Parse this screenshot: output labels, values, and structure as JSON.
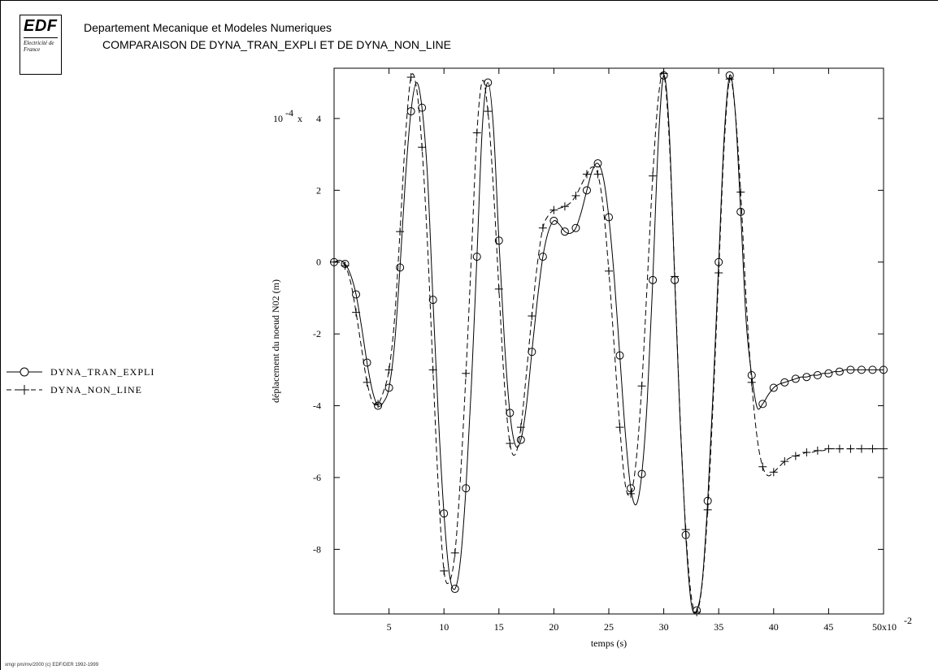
{
  "header": {
    "logo_mark": "EDF",
    "logo_sub": "Electricité de France",
    "title_line1": "Departement Mecanique et Modeles Numeriques",
    "title_line2": "COMPARAISON DE DYNA_TRAN_EXPLI ET DE DYNA_NON_LINE"
  },
  "footer": {
    "text": "xmgr pm/mv/2000 (c) EDF/DER 1992-1999"
  },
  "chart_data": {
    "type": "line",
    "title": "COMPARAISON DE DYNA_TRAN_EXPLI ET DE DYNA_NON_LINE",
    "xlabel": "temps (s)",
    "ylabel": "déplacement du noeud N02 (m)",
    "x_multiplier_label": "x10",
    "x_multiplier_exp": "-2",
    "y_multiplier_label": "10",
    "y_multiplier_exp": "-4",
    "y_multiplier_suffix": "x",
    "xlim": [
      0,
      50
    ],
    "ylim": [
      -9.8,
      5.4
    ],
    "x_ticks": [
      5,
      10,
      15,
      20,
      25,
      30,
      35,
      40,
      45,
      50
    ],
    "x_tick_labels": [
      "5",
      "10",
      "15",
      "20",
      "25",
      "30",
      "35",
      "40",
      "45",
      "50"
    ],
    "y_ticks": [
      4,
      2,
      0,
      -2,
      -4,
      -6,
      -8
    ],
    "y_tick_labels": [
      "4",
      "2",
      "0",
      "-2",
      "-4",
      "-6",
      "-8"
    ],
    "grid": false,
    "legend_position": "left",
    "series": [
      {
        "name": "DYNA_TRAN_EXPLI",
        "marker": "circle",
        "line": "solid",
        "color": "#000000",
        "x": [
          0,
          0.5,
          1.0,
          1.5,
          2.0,
          2.5,
          3.0,
          3.5,
          4.0,
          4.5,
          5.0,
          5.5,
          6.0,
          6.5,
          7.0,
          7.5,
          8.0,
          8.5,
          9.0,
          9.5,
          10.0,
          10.5,
          11.0,
          11.5,
          12.0,
          12.5,
          13.0,
          13.5,
          14.0,
          14.5,
          15.0,
          15.5,
          16.0,
          16.5,
          17.0,
          17.5,
          18.0,
          18.5,
          19.0,
          19.5,
          20.0,
          20.5,
          21.0,
          21.5,
          22.0,
          22.5,
          23.0,
          23.5,
          24.0,
          24.5,
          25.0,
          25.5,
          26.0,
          26.5,
          27.0,
          27.5,
          28.0,
          28.5,
          29.0,
          29.5,
          30.0,
          30.5,
          31.0,
          31.5,
          32.0,
          32.5,
          33.0,
          33.5,
          34.0,
          34.5,
          35.0,
          35.5,
          36.0,
          36.5,
          37.0,
          37.5,
          38.0,
          38.5,
          39.0,
          39.5,
          40.0,
          40.5,
          41.0,
          41.5,
          42.0,
          42.5,
          43.0,
          43.5,
          44.0,
          44.5,
          45.0,
          45.5,
          46.0,
          46.5,
          47.0,
          47.5,
          48.0,
          48.5,
          49.0,
          49.5,
          50.0
        ],
        "y": [
          0.0,
          0.05,
          -0.05,
          -0.35,
          -0.9,
          -1.8,
          -2.8,
          -3.6,
          -4.0,
          -3.9,
          -3.5,
          -2.3,
          -0.15,
          2.35,
          4.2,
          5.0,
          4.3,
          2.4,
          -1.05,
          -4.35,
          -7.0,
          -8.7,
          -9.1,
          -8.3,
          -6.3,
          -3.4,
          0.15,
          3.8,
          5.0,
          3.75,
          0.6,
          -2.2,
          -4.2,
          -5.1,
          -4.95,
          -4.0,
          -2.5,
          -1.05,
          0.15,
          0.85,
          1.15,
          1.05,
          0.85,
          0.8,
          0.95,
          1.4,
          2.0,
          2.55,
          2.75,
          2.35,
          1.25,
          -0.45,
          -2.6,
          -4.75,
          -6.3,
          -6.75,
          -5.9,
          -3.85,
          -0.5,
          3.3,
          5.2,
          3.65,
          -0.5,
          -4.5,
          -7.6,
          -9.5,
          -9.7,
          -8.9,
          -6.65,
          -3.55,
          0.0,
          3.5,
          5.2,
          4.2,
          1.4,
          -1.65,
          -3.15,
          -4.05,
          -3.95,
          -3.7,
          -3.5,
          -3.4,
          -3.35,
          -3.3,
          -3.25,
          -3.2,
          -3.2,
          -3.15,
          -3.15,
          -3.1,
          -3.1,
          -3.05,
          -3.05,
          -3.0,
          -3.0,
          -3.0,
          -3.0,
          -3.0,
          -3.0,
          -3.0,
          -3.0
        ]
      },
      {
        "name": "DYNA_NON_LINE",
        "marker": "plus",
        "line": "dashed",
        "color": "#000000",
        "x": [
          0,
          0.5,
          1.0,
          1.5,
          2.0,
          2.5,
          3.0,
          3.5,
          4.0,
          4.5,
          5.0,
          5.5,
          6.0,
          6.5,
          7.0,
          7.5,
          8.0,
          8.5,
          9.0,
          9.5,
          10.0,
          10.5,
          11.0,
          11.5,
          12.0,
          12.5,
          13.0,
          13.5,
          14.0,
          14.5,
          15.0,
          15.5,
          16.0,
          16.5,
          17.0,
          17.5,
          18.0,
          18.5,
          19.0,
          19.5,
          20.0,
          20.5,
          21.0,
          21.5,
          22.0,
          22.5,
          23.0,
          23.5,
          24.0,
          24.5,
          25.0,
          25.5,
          26.0,
          26.5,
          27.0,
          27.5,
          28.0,
          28.5,
          29.0,
          29.5,
          30.0,
          30.5,
          31.0,
          31.5,
          32.0,
          32.5,
          33.0,
          33.5,
          34.0,
          34.5,
          35.0,
          35.5,
          36.0,
          36.5,
          37.0,
          37.5,
          38.0,
          38.5,
          39.0,
          39.5,
          40.0,
          40.5,
          41.0,
          41.5,
          42.0,
          42.5,
          43.0,
          43.5,
          44.0,
          44.5,
          45.0,
          45.5,
          46.0,
          46.5,
          47.0,
          47.5,
          48.0,
          48.5,
          49.0,
          49.5,
          50.0
        ],
        "y": [
          0.0,
          0.0,
          -0.1,
          -0.55,
          -1.4,
          -2.4,
          -3.35,
          -3.9,
          -3.95,
          -3.6,
          -3.0,
          -1.6,
          0.85,
          3.5,
          5.15,
          4.85,
          3.2,
          0.5,
          -3.0,
          -6.35,
          -8.6,
          -8.9,
          -8.1,
          -6.0,
          -3.1,
          0.2,
          3.6,
          5.05,
          4.2,
          2.05,
          -0.75,
          -3.4,
          -5.05,
          -5.35,
          -4.6,
          -3.1,
          -1.5,
          -0.05,
          0.95,
          1.3,
          1.45,
          1.5,
          1.55,
          1.65,
          1.85,
          2.15,
          2.45,
          2.65,
          2.45,
          1.5,
          -0.25,
          -2.4,
          -4.6,
          -6.2,
          -6.45,
          -5.5,
          -3.45,
          -0.55,
          2.4,
          4.55,
          5.25,
          3.4,
          -0.4,
          -4.4,
          -7.45,
          -9.3,
          -9.75,
          -8.95,
          -6.9,
          -3.85,
          -0.3,
          3.25,
          5.1,
          4.2,
          1.95,
          -1.05,
          -3.35,
          -4.9,
          -5.7,
          -5.95,
          -5.85,
          -5.7,
          -5.55,
          -5.45,
          -5.4,
          -5.35,
          -5.3,
          -5.3,
          -5.25,
          -5.25,
          -5.2,
          -5.2,
          -5.2,
          -5.2,
          -5.2,
          -5.2,
          -5.2,
          -5.2,
          -5.2,
          -5.2,
          -5.2
        ]
      }
    ]
  }
}
